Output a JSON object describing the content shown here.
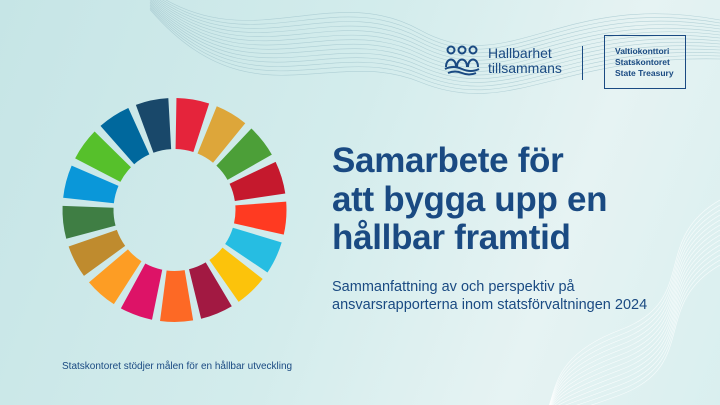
{
  "logo_hallbarhet": {
    "line1": "Hallbarhet",
    "line2": "tillsammans",
    "icon": "three-people-waves-icon"
  },
  "logo_statskontoret": {
    "line1": "Valtiokonttori",
    "line2": "Statskontoret",
    "line3": "State Treasury"
  },
  "title": {
    "line1": "Samarbete för",
    "line2": "att bygga upp en",
    "line3": "hållbar framtid"
  },
  "subtitle": {
    "line1": "Sammanfattning av och perspektiv på",
    "line2": "ansvarsrapporterna inom statsförvaltningen 2024"
  },
  "footer": "Statskontoret stödjer målen för en hållbar utveckling",
  "colors": {
    "text": "#1a4a82",
    "background": "#d3ecec"
  },
  "sdg_wheel_colors": [
    "#E5243B",
    "#DDA63A",
    "#4C9F38",
    "#C5192D",
    "#FF3A21",
    "#26BDE2",
    "#FCC30B",
    "#A21942",
    "#FD6925",
    "#DD1367",
    "#FD9D24",
    "#BF8B2E",
    "#3F7E44",
    "#0A97D9",
    "#56C02B",
    "#00689D",
    "#19486A"
  ]
}
